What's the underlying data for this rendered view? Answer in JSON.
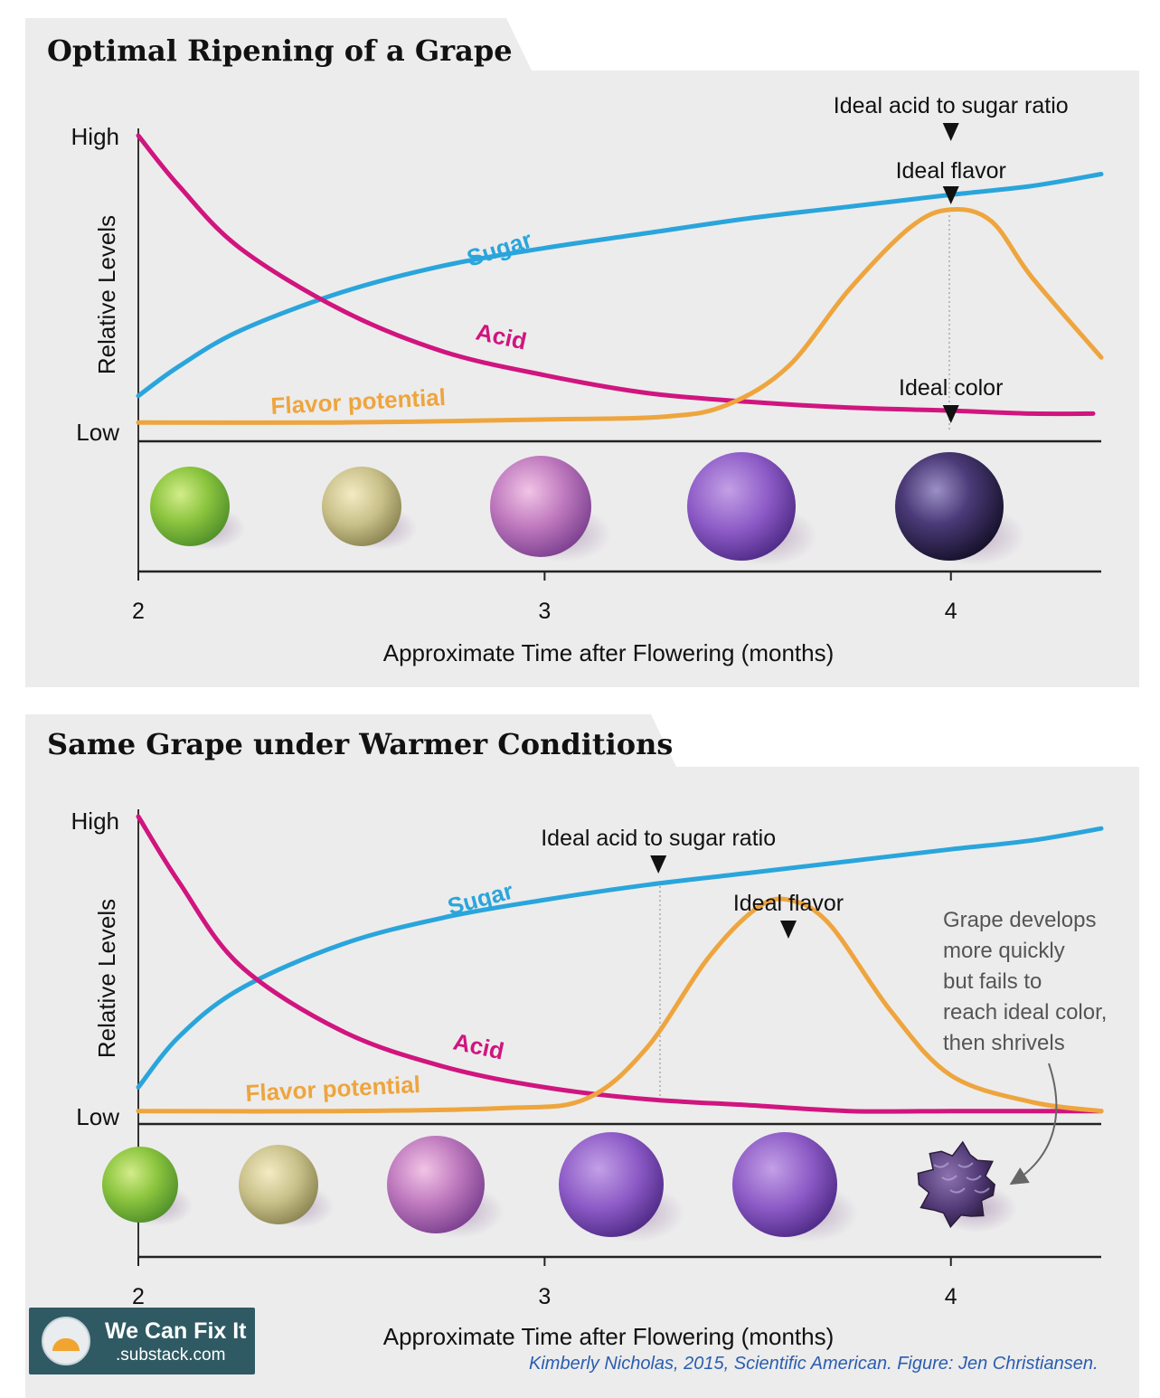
{
  "colors": {
    "sugar": "#2aa5dc",
    "acid": "#d0157f",
    "flavor": "#eea53e",
    "panel": "#ececec"
  },
  "chart_data": [
    {
      "type": "line",
      "title": "Optimal Ripening of a Grape",
      "xlabel": "Approximate Time after Flowering (months)",
      "ylabel": "Relative Levels",
      "y_ticks": [
        "Low",
        "High"
      ],
      "x_ticks": [
        "2",
        "3",
        "4"
      ],
      "xlim": [
        2,
        4.37
      ],
      "ylim": [
        0,
        1
      ],
      "grid": false,
      "series": [
        {
          "name": "Sugar",
          "x": [
            2.0,
            2.1,
            2.25,
            2.5,
            2.75,
            3.0,
            3.25,
            3.5,
            3.75,
            4.0,
            4.2,
            4.37
          ],
          "y": [
            0.12,
            0.22,
            0.34,
            0.47,
            0.56,
            0.62,
            0.67,
            0.72,
            0.76,
            0.8,
            0.83,
            0.87
          ]
        },
        {
          "name": "Acid",
          "x": [
            2.0,
            2.1,
            2.25,
            2.5,
            2.75,
            3.0,
            3.25,
            3.5,
            3.75,
            4.0,
            4.2,
            4.35
          ],
          "y": [
            1.0,
            0.83,
            0.62,
            0.41,
            0.27,
            0.19,
            0.13,
            0.1,
            0.08,
            0.07,
            0.06,
            0.06
          ]
        },
        {
          "name": "Flavor potential",
          "x": [
            2.0,
            2.5,
            3.0,
            3.3,
            3.45,
            3.6,
            3.75,
            3.9,
            4.0,
            4.1,
            4.2,
            4.37
          ],
          "y": [
            0.03,
            0.03,
            0.04,
            0.05,
            0.09,
            0.22,
            0.48,
            0.69,
            0.75,
            0.71,
            0.52,
            0.25
          ]
        }
      ],
      "annotations": [
        {
          "text": "Ideal acid to sugar ratio",
          "x": 4.0
        },
        {
          "text": "Ideal flavor",
          "x": 4.0
        },
        {
          "text": "Ideal color",
          "x": 4.0
        }
      ],
      "grapes": [
        "green",
        "golden",
        "pink",
        "purple",
        "dark"
      ]
    },
    {
      "type": "line",
      "title": "Same Grape under Warmer Conditions",
      "xlabel": "Approximate Time after Flowering (months)",
      "ylabel": "Relative Levels",
      "y_ticks": [
        "Low",
        "High"
      ],
      "x_ticks": [
        "2",
        "3",
        "4"
      ],
      "xlim": [
        2,
        4.37
      ],
      "ylim": [
        0,
        1
      ],
      "grid": false,
      "series": [
        {
          "name": "Sugar",
          "x": [
            2.0,
            2.1,
            2.25,
            2.5,
            2.75,
            3.0,
            3.25,
            3.5,
            3.75,
            4.0,
            4.2,
            4.37
          ],
          "y": [
            0.09,
            0.26,
            0.42,
            0.57,
            0.66,
            0.72,
            0.77,
            0.81,
            0.85,
            0.89,
            0.92,
            0.96
          ]
        },
        {
          "name": "Acid",
          "x": [
            2.0,
            2.1,
            2.25,
            2.5,
            2.75,
            3.0,
            3.25,
            3.5,
            3.75,
            4.0,
            4.2,
            4.37
          ],
          "y": [
            1.0,
            0.78,
            0.5,
            0.28,
            0.16,
            0.09,
            0.05,
            0.03,
            0.01,
            0.01,
            0.01,
            0.01
          ]
        },
        {
          "name": "Flavor potential",
          "x": [
            2.0,
            2.5,
            2.9,
            3.1,
            3.25,
            3.4,
            3.52,
            3.6,
            3.7,
            3.85,
            4.0,
            4.2,
            4.37
          ],
          "y": [
            0.01,
            0.01,
            0.02,
            0.05,
            0.22,
            0.52,
            0.69,
            0.72,
            0.64,
            0.35,
            0.13,
            0.04,
            0.01
          ]
        }
      ],
      "annotations": [
        {
          "text": "Ideal acid to sugar ratio",
          "x": 3.28
        },
        {
          "text": "Ideal flavor",
          "x": 3.6
        },
        {
          "text": "Grape develops\nmore quickly\nbut fails to\nreach ideal color,\nthen shrivels",
          "x": 4.2
        }
      ],
      "grapes": [
        "green",
        "golden",
        "pink",
        "purple",
        "purple",
        "shriveled"
      ]
    }
  ],
  "credit": "Kimberly Nicholas, 2015, Scientific American. Figure: Jen Christiansen.",
  "brand": {
    "line1": "We Can Fix It",
    "line2": ".substack.com"
  }
}
